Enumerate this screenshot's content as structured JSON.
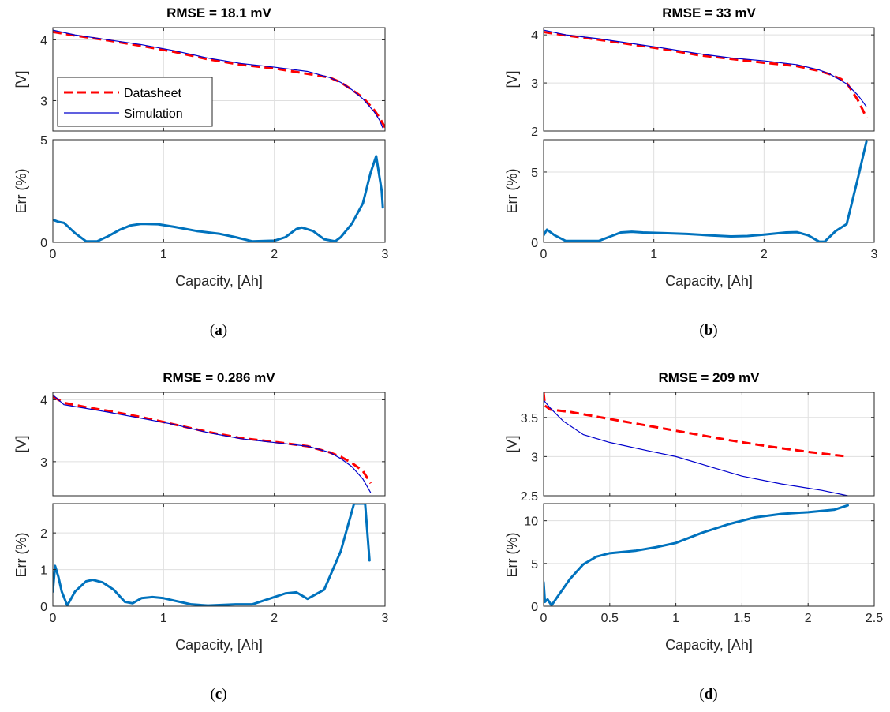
{
  "colors": {
    "datasheet": "#ff0000",
    "simulation": "#0000cc",
    "error": "#0072bd",
    "grid": "#dfdfdf",
    "axis": "#262626"
  },
  "legend": {
    "datasheet": "Datasheet",
    "simulation": "Simulation",
    "location": "inside-lower-left"
  },
  "chart_data": [
    {
      "id": "a",
      "caption_letter": "a",
      "type": "line",
      "title": "RMSE = 18.1 mV",
      "xlabel": "Capacity, [Ah]",
      "top_ylabel": "[V]",
      "bottom_ylabel": "Err (%)",
      "xlim": [
        0,
        3
      ],
      "xticks": [
        "0",
        "1",
        "2",
        "3"
      ],
      "top_ylim": [
        2.5,
        4.2
      ],
      "top_yticks": [
        "3",
        "4"
      ],
      "bottom_ylim": [
        0,
        5
      ],
      "bottom_yticks": [
        "0",
        "5"
      ],
      "grid": true,
      "legend_shown": true,
      "datasheet": [
        [
          0,
          4.13
        ],
        [
          0.2,
          4.07
        ],
        [
          0.5,
          3.99
        ],
        [
          0.8,
          3.9
        ],
        [
          1.1,
          3.8
        ],
        [
          1.4,
          3.68
        ],
        [
          1.7,
          3.59
        ],
        [
          2.0,
          3.53
        ],
        [
          2.3,
          3.44
        ],
        [
          2.5,
          3.38
        ],
        [
          2.6,
          3.3
        ],
        [
          2.7,
          3.18
        ],
        [
          2.8,
          3.05
        ],
        [
          2.9,
          2.85
        ],
        [
          2.95,
          2.72
        ],
        [
          3.0,
          2.56
        ]
      ],
      "simulation": [
        [
          0,
          4.16
        ],
        [
          0.2,
          4.08
        ],
        [
          0.5,
          4.0
        ],
        [
          0.8,
          3.92
        ],
        [
          1.1,
          3.82
        ],
        [
          1.4,
          3.7
        ],
        [
          1.7,
          3.61
        ],
        [
          2.0,
          3.55
        ],
        [
          2.3,
          3.48
        ],
        [
          2.5,
          3.38
        ],
        [
          2.6,
          3.3
        ],
        [
          2.7,
          3.18
        ],
        [
          2.8,
          3.03
        ],
        [
          2.9,
          2.82
        ],
        [
          2.95,
          2.68
        ],
        [
          2.98,
          2.55
        ]
      ],
      "error": [
        [
          0,
          1.1
        ],
        [
          0.05,
          1.0
        ],
        [
          0.1,
          0.95
        ],
        [
          0.2,
          0.45
        ],
        [
          0.3,
          0.05
        ],
        [
          0.4,
          0.05
        ],
        [
          0.5,
          0.3
        ],
        [
          0.6,
          0.6
        ],
        [
          0.7,
          0.82
        ],
        [
          0.8,
          0.9
        ],
        [
          0.95,
          0.88
        ],
        [
          1.1,
          0.75
        ],
        [
          1.3,
          0.55
        ],
        [
          1.5,
          0.42
        ],
        [
          1.65,
          0.25
        ],
        [
          1.8,
          0.05
        ],
        [
          2.0,
          0.08
        ],
        [
          2.1,
          0.25
        ],
        [
          2.2,
          0.65
        ],
        [
          2.25,
          0.72
        ],
        [
          2.35,
          0.55
        ],
        [
          2.45,
          0.15
        ],
        [
          2.55,
          0.05
        ],
        [
          2.6,
          0.25
        ],
        [
          2.7,
          0.9
        ],
        [
          2.8,
          1.9
        ],
        [
          2.87,
          3.4
        ],
        [
          2.92,
          4.2
        ],
        [
          2.97,
          2.5
        ],
        [
          2.98,
          1.7
        ]
      ]
    },
    {
      "id": "b",
      "caption_letter": "b",
      "type": "line",
      "title": "RMSE = 33 mV",
      "xlabel": "Capacity, [Ah]",
      "top_ylabel": "[V]",
      "bottom_ylabel": "Err (%)",
      "xlim": [
        0,
        3
      ],
      "xticks": [
        "0",
        "1",
        "2",
        "3"
      ],
      "top_ylim": [
        2,
        4.15
      ],
      "top_yticks": [
        "2",
        "3",
        "4"
      ],
      "bottom_ylim": [
        0,
        7.3
      ],
      "bottom_yticks": [
        "0",
        "5"
      ],
      "grid": true,
      "legend_shown": false,
      "datasheet": [
        [
          0,
          4.06
        ],
        [
          0.2,
          3.99
        ],
        [
          0.5,
          3.9
        ],
        [
          0.8,
          3.8
        ],
        [
          1.1,
          3.7
        ],
        [
          1.4,
          3.58
        ],
        [
          1.7,
          3.5
        ],
        [
          2.0,
          3.42
        ],
        [
          2.3,
          3.35
        ],
        [
          2.5,
          3.25
        ],
        [
          2.6,
          3.18
        ],
        [
          2.7,
          3.08
        ],
        [
          2.75,
          3.0
        ],
        [
          2.85,
          2.65
        ],
        [
          2.9,
          2.42
        ],
        [
          2.93,
          2.27
        ]
      ],
      "simulation": [
        [
          0,
          4.1
        ],
        [
          0.2,
          4.0
        ],
        [
          0.5,
          3.92
        ],
        [
          0.8,
          3.82
        ],
        [
          1.1,
          3.72
        ],
        [
          1.4,
          3.61
        ],
        [
          1.7,
          3.52
        ],
        [
          2.0,
          3.46
        ],
        [
          2.3,
          3.38
        ],
        [
          2.5,
          3.27
        ],
        [
          2.6,
          3.18
        ],
        [
          2.7,
          3.05
        ],
        [
          2.75,
          2.98
        ],
        [
          2.85,
          2.75
        ],
        [
          2.9,
          2.6
        ],
        [
          2.93,
          2.5
        ]
      ],
      "error": [
        [
          0,
          0.5
        ],
        [
          0.03,
          0.9
        ],
        [
          0.1,
          0.5
        ],
        [
          0.2,
          0.1
        ],
        [
          0.3,
          0.1
        ],
        [
          0.4,
          0.1
        ],
        [
          0.5,
          0.1
        ],
        [
          0.6,
          0.4
        ],
        [
          0.7,
          0.7
        ],
        [
          0.8,
          0.75
        ],
        [
          0.9,
          0.7
        ],
        [
          1.1,
          0.65
        ],
        [
          1.3,
          0.6
        ],
        [
          1.5,
          0.5
        ],
        [
          1.7,
          0.42
        ],
        [
          1.85,
          0.45
        ],
        [
          2.0,
          0.55
        ],
        [
          2.2,
          0.7
        ],
        [
          2.3,
          0.72
        ],
        [
          2.4,
          0.5
        ],
        [
          2.5,
          0.05
        ],
        [
          2.55,
          0.05
        ],
        [
          2.65,
          0.8
        ],
        [
          2.75,
          1.3
        ],
        [
          2.85,
          4.5
        ],
        [
          2.93,
          7.2
        ]
      ]
    },
    {
      "id": "c",
      "caption_letter": "c",
      "type": "line",
      "title": "RMSE = 0.286 mV",
      "xlabel": "Capacity, [Ah]",
      "top_ylabel": "[V]",
      "bottom_ylabel": "Err (%)",
      "xlim": [
        0,
        3
      ],
      "xticks": [
        "0",
        "1",
        "2",
        "3"
      ],
      "top_ylim": [
        2.45,
        4.12
      ],
      "top_yticks": [
        "3",
        "4"
      ],
      "bottom_ylim": [
        0,
        2.8
      ],
      "bottom_yticks": [
        "0",
        "1",
        "2"
      ],
      "grid": true,
      "legend_shown": false,
      "datasheet": [
        [
          0,
          4.05
        ],
        [
          0.1,
          3.95
        ],
        [
          0.3,
          3.88
        ],
        [
          0.5,
          3.82
        ],
        [
          0.8,
          3.72
        ],
        [
          1.1,
          3.6
        ],
        [
          1.4,
          3.48
        ],
        [
          1.7,
          3.38
        ],
        [
          2.0,
          3.32
        ],
        [
          2.3,
          3.25
        ],
        [
          2.5,
          3.15
        ],
        [
          2.6,
          3.08
        ],
        [
          2.7,
          2.98
        ],
        [
          2.8,
          2.85
        ],
        [
          2.87,
          2.65
        ]
      ],
      "simulation": [
        [
          0,
          4.08
        ],
        [
          0.1,
          3.92
        ],
        [
          0.3,
          3.86
        ],
        [
          0.5,
          3.8
        ],
        [
          0.8,
          3.7
        ],
        [
          1.1,
          3.6
        ],
        [
          1.4,
          3.47
        ],
        [
          1.7,
          3.37
        ],
        [
          2.0,
          3.31
        ],
        [
          2.3,
          3.25
        ],
        [
          2.5,
          3.15
        ],
        [
          2.6,
          3.05
        ],
        [
          2.7,
          2.92
        ],
        [
          2.8,
          2.72
        ],
        [
          2.87,
          2.5
        ]
      ],
      "error": [
        [
          0,
          0.4
        ],
        [
          0.02,
          1.1
        ],
        [
          0.05,
          0.8
        ],
        [
          0.08,
          0.4
        ],
        [
          0.13,
          0.02
        ],
        [
          0.2,
          0.4
        ],
        [
          0.3,
          0.68
        ],
        [
          0.36,
          0.72
        ],
        [
          0.45,
          0.65
        ],
        [
          0.55,
          0.45
        ],
        [
          0.65,
          0.12
        ],
        [
          0.72,
          0.08
        ],
        [
          0.8,
          0.22
        ],
        [
          0.9,
          0.25
        ],
        [
          1.0,
          0.22
        ],
        [
          1.1,
          0.15
        ],
        [
          1.25,
          0.05
        ],
        [
          1.4,
          0.02
        ],
        [
          1.65,
          0.05
        ],
        [
          1.8,
          0.05
        ],
        [
          2.0,
          0.25
        ],
        [
          2.1,
          0.35
        ],
        [
          2.2,
          0.38
        ],
        [
          2.3,
          0.2
        ],
        [
          2.45,
          0.45
        ],
        [
          2.6,
          1.5
        ],
        [
          2.72,
          2.8
        ],
        [
          2.82,
          2.8
        ],
        [
          2.86,
          1.25
        ]
      ]
    },
    {
      "id": "d",
      "caption_letter": "d",
      "type": "line",
      "title": "RMSE = 209 mV",
      "xlabel": "Capacity, [Ah]",
      "top_ylabel": "[V]",
      "bottom_ylabel": "Err (%)",
      "xlim": [
        0,
        2.5
      ],
      "xticks": [
        "0",
        "0.5",
        "1",
        "1.5",
        "2",
        "2.5"
      ],
      "top_ylim": [
        2.5,
        3.82
      ],
      "top_yticks": [
        "2.5",
        "3",
        "3.5"
      ],
      "bottom_ylim": [
        0,
        12
      ],
      "bottom_yticks": [
        "0",
        "5",
        "10"
      ],
      "grid": true,
      "legend_shown": false,
      "datasheet": [
        [
          0,
          3.82
        ],
        [
          0.01,
          3.65
        ],
        [
          0.05,
          3.6
        ],
        [
          0.2,
          3.57
        ],
        [
          0.5,
          3.48
        ],
        [
          0.8,
          3.39
        ],
        [
          1.1,
          3.3
        ],
        [
          1.4,
          3.21
        ],
        [
          1.7,
          3.13
        ],
        [
          2.0,
          3.06
        ],
        [
          2.3,
          3.0
        ]
      ],
      "simulation": [
        [
          0,
          3.72
        ],
        [
          0.05,
          3.62
        ],
        [
          0.15,
          3.45
        ],
        [
          0.3,
          3.28
        ],
        [
          0.5,
          3.18
        ],
        [
          0.8,
          3.07
        ],
        [
          1.0,
          3.0
        ],
        [
          1.3,
          2.85
        ],
        [
          1.5,
          2.75
        ],
        [
          1.8,
          2.65
        ],
        [
          2.1,
          2.57
        ],
        [
          2.3,
          2.5
        ]
      ],
      "error": [
        [
          0,
          2.8
        ],
        [
          0.01,
          0.5
        ],
        [
          0.03,
          0.8
        ],
        [
          0.06,
          0.1
        ],
        [
          0.1,
          1.0
        ],
        [
          0.2,
          3.2
        ],
        [
          0.3,
          4.9
        ],
        [
          0.4,
          5.8
        ],
        [
          0.5,
          6.2
        ],
        [
          0.7,
          6.5
        ],
        [
          0.85,
          6.9
        ],
        [
          1.0,
          7.4
        ],
        [
          1.2,
          8.6
        ],
        [
          1.4,
          9.6
        ],
        [
          1.6,
          10.4
        ],
        [
          1.8,
          10.8
        ],
        [
          2.0,
          11.0
        ],
        [
          2.2,
          11.3
        ],
        [
          2.3,
          11.8
        ]
      ]
    }
  ]
}
